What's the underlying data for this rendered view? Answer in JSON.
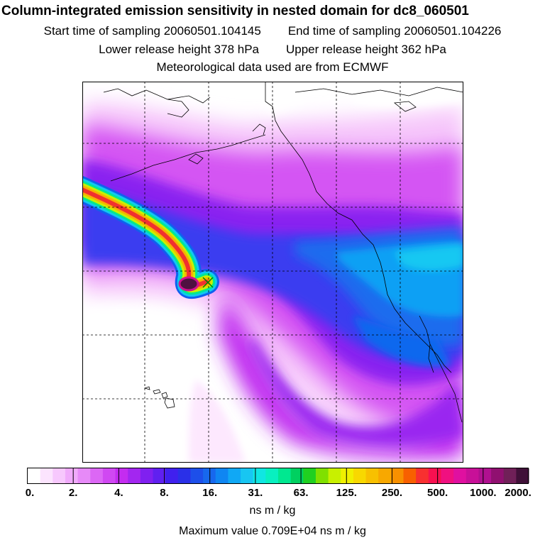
{
  "header": {
    "title": "Column-integrated emission sensitivity in nested domain for dc8_060501",
    "start_time": "Start time of sampling 20060501.104145",
    "end_time": "End time of sampling 20060501.104226",
    "lower_release": "Lower release height  378 hPa",
    "upper_release": "Upper release height  362 hPa",
    "met_data": "Meteorological data used are from ECMWF"
  },
  "colorbar": {
    "tick_labels": [
      "0.",
      "2.",
      "4.",
      "8.",
      "16.",
      "31.",
      "63.",
      "125.",
      "250.",
      "500.",
      "1000.",
      "2000."
    ],
    "colors": [
      "#ffffff",
      "#fce4fe",
      "#f7c8fd",
      "#f0aafb",
      "#e78af8",
      "#dc67f5",
      "#d048f2",
      "#c42cf0",
      "#a326f0",
      "#8020f0",
      "#6020f0",
      "#4020ee",
      "#2a30e8",
      "#1d4fea",
      "#1768ee",
      "#0f86f2",
      "#10a8f5",
      "#18c6f2",
      "#10e6e2",
      "#08f0c0",
      "#00e890",
      "#00d060",
      "#20d020",
      "#80e000",
      "#c8f000",
      "#f0f000",
      "#f8d800",
      "#f8c000",
      "#f8a800",
      "#f89000",
      "#f86000",
      "#f83030",
      "#f81050",
      "#f01080",
      "#e010a0",
      "#c81098",
      "#b01090",
      "#901070",
      "#702058",
      "#401038"
    ],
    "units": "ns m / kg",
    "max_value": "Maximum value  0.709E+04 ns m / kg"
  },
  "map": {
    "release_point_icon": "cross-marker"
  }
}
